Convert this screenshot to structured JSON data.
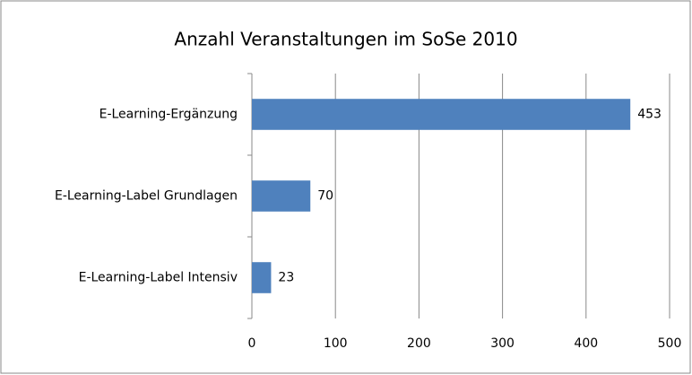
{
  "chart_data": {
    "type": "barh",
    "title": "Anzahl Veranstaltungen im SoSe 2010",
    "categories": [
      "E-Learning-Ergänzung",
      "E-Learning-Label Grundlagen",
      "E-Learning-Label Intensiv"
    ],
    "values": [
      453,
      70,
      23
    ],
    "color": "#4f81bd",
    "xlim": [
      0,
      500
    ],
    "xticks": [
      0,
      100,
      200,
      300,
      400,
      500
    ],
    "grid": true
  }
}
